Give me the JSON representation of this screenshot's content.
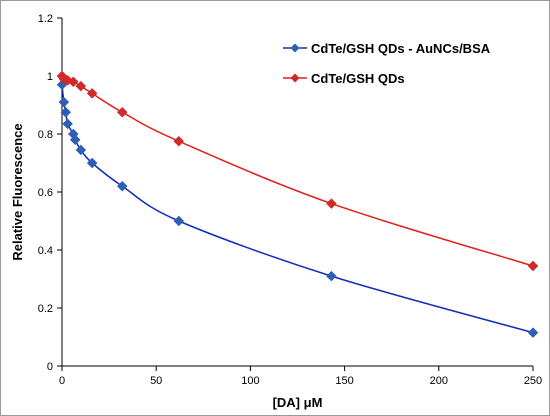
{
  "chart_data": {
    "type": "scatter",
    "title": "",
    "xlabel": "[DA] μM",
    "ylabel": "Relative Fluorescence",
    "xlim": [
      0,
      250
    ],
    "ylim": [
      0,
      1.2
    ],
    "x_ticks": [
      "0",
      "50",
      "100",
      "150",
      "200",
      "250"
    ],
    "y_ticks": [
      "0",
      "0.2",
      "0.4",
      "0.6",
      "0.8",
      "1",
      "1.2"
    ],
    "grid": false,
    "legend_position": "top-right",
    "series": [
      {
        "name": "CdTe/GSH QDs - AuNCs/BSA",
        "color": "#2f5fb3",
        "line_color": "#0f2fb8",
        "marker": "diamond",
        "x": [
          0,
          1,
          2,
          3,
          6,
          7,
          10,
          16,
          32,
          62,
          143,
          250
        ],
        "y": [
          0.97,
          0.91,
          0.875,
          0.835,
          0.8,
          0.78,
          0.745,
          0.7,
          0.62,
          0.5,
          0.31,
          0.115
        ]
      },
      {
        "name": "CdTe/GSH QDs",
        "color": "#d02a2a",
        "line_color": "#e31d1d",
        "marker": "diamond",
        "x": [
          0,
          1,
          3,
          6,
          10,
          16,
          32,
          62,
          143,
          250
        ],
        "y": [
          1.0,
          0.99,
          0.985,
          0.98,
          0.965,
          0.94,
          0.875,
          0.775,
          0.56,
          0.345
        ]
      }
    ]
  }
}
